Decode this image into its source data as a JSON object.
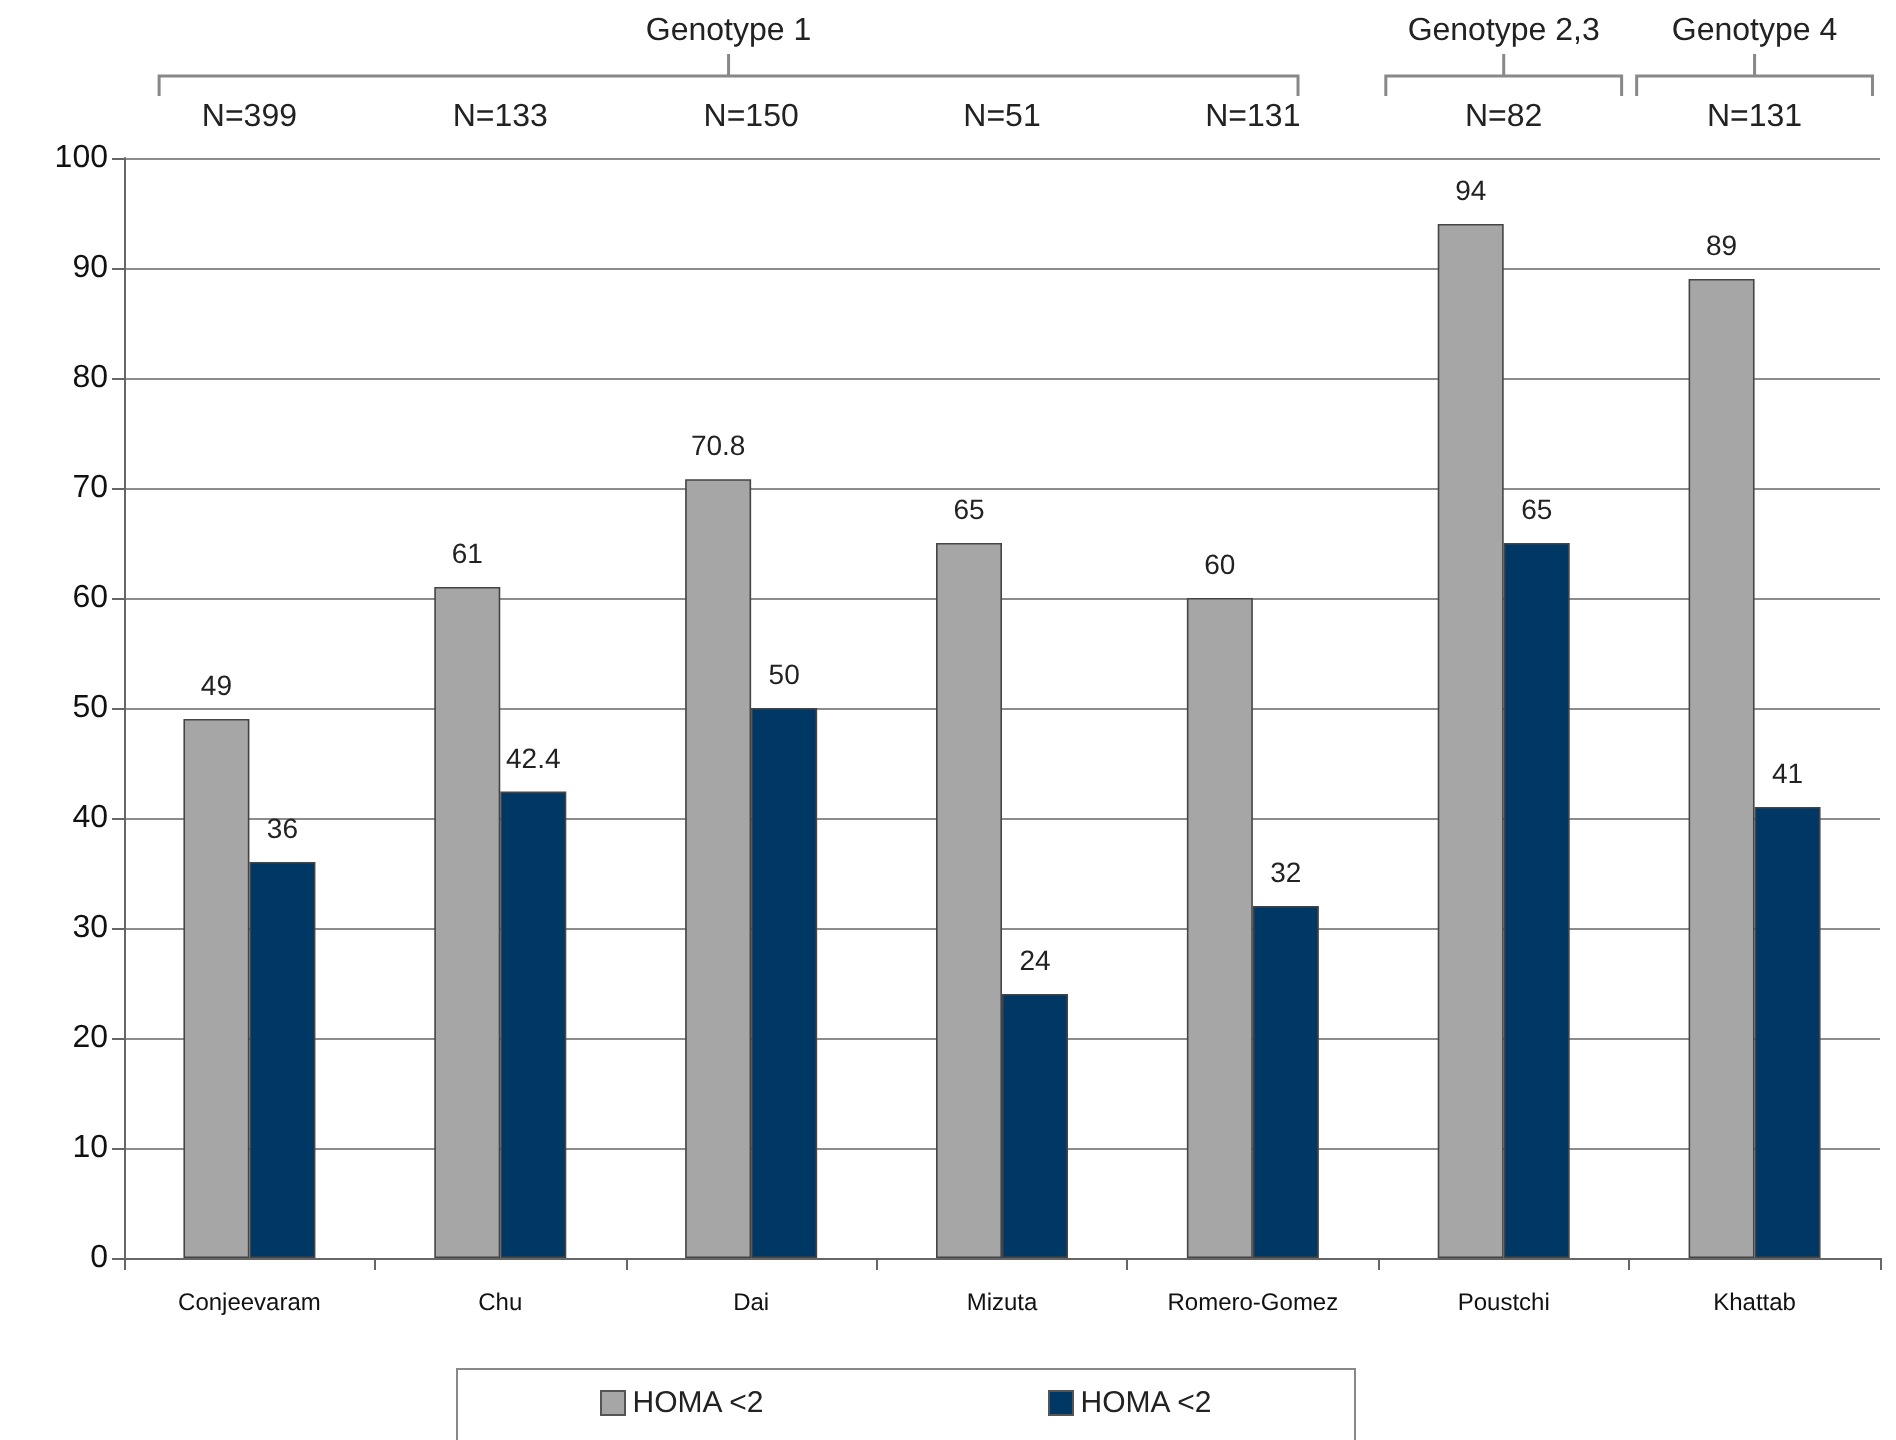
{
  "chart_data": {
    "type": "bar",
    "categories": [
      "Conjeevaram",
      "Chu",
      "Dai",
      "Mizuta",
      "Romero-Gomez",
      "Poustchi",
      "Khattab"
    ],
    "series": [
      {
        "name": "HOMA <2",
        "color": "#a6a6a6",
        "values": [
          49,
          61,
          70.8,
          65,
          60,
          94,
          89
        ]
      },
      {
        "name": "HOMA <2",
        "color": "#003865",
        "values": [
          36,
          42.4,
          50,
          24,
          32,
          65,
          41
        ]
      }
    ],
    "annotations": [
      "Genotype 1",
      "Genotype 2,3",
      "Genotype 4",
      "N=399",
      "N=133",
      "N=150",
      "N=51",
      "N=131",
      "N=82",
      "N=131"
    ],
    "ylim": [
      0,
      100
    ],
    "yticks": [
      0,
      10,
      20,
      30,
      40,
      50,
      60,
      70,
      80,
      90,
      100
    ],
    "grid": "y",
    "legend": "bottom",
    "data_labels": true
  }
}
